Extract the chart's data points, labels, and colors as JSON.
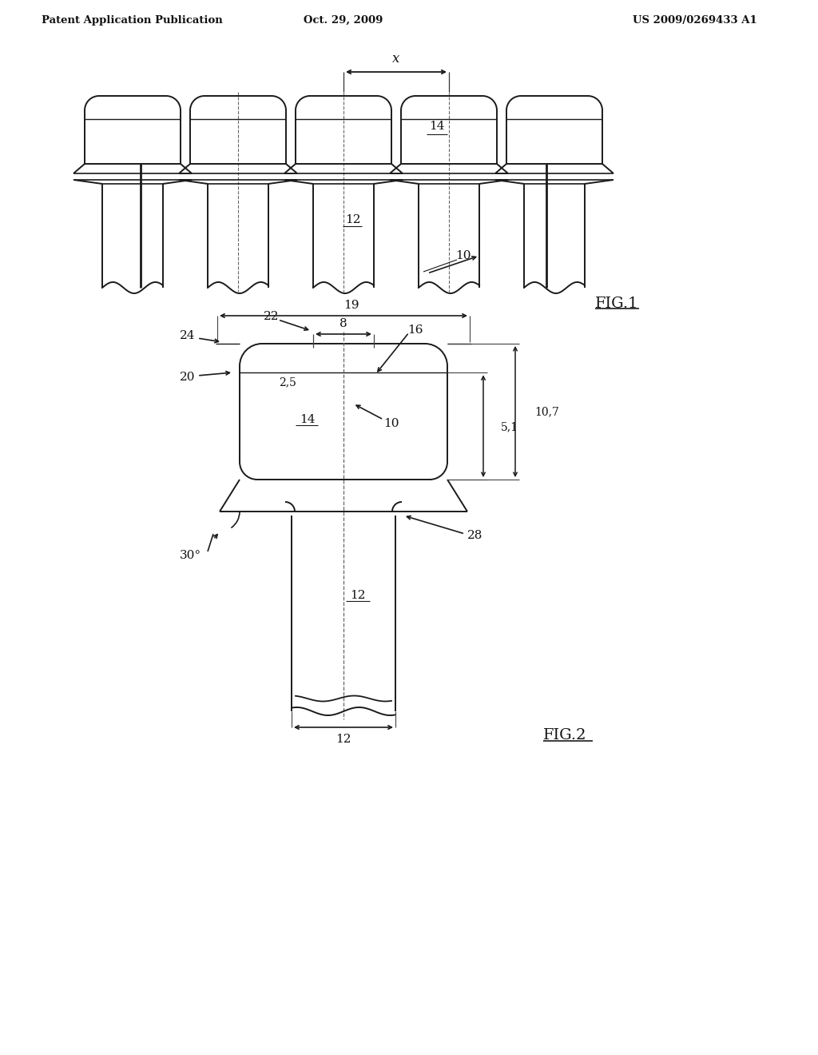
{
  "bg_color": "#ffffff",
  "header_left": "Patent Application Publication",
  "header_center": "Oct. 29, 2009",
  "header_right": "US 2009/0269433 A1",
  "line_color": "#1a1a1a",
  "text_color": "#111111",
  "fig1_x_label": "x",
  "fig1_labels": [
    "14",
    "12",
    "10"
  ],
  "fig2_labels": [
    "19",
    "22",
    "8",
    "16",
    "24",
    "20",
    "2,5",
    "14",
    "10",
    "5,1",
    "10,7",
    "12",
    "12",
    "28",
    "30°"
  ],
  "fig1_label": "FIG.1",
  "fig2_label": "FIG.2"
}
